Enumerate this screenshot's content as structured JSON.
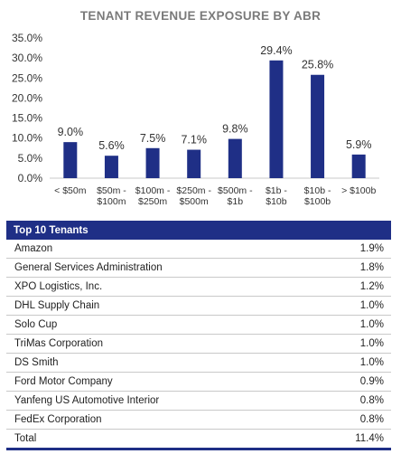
{
  "chart_data": {
    "type": "bar",
    "title": "TENANT REVENUE EXPOSURE BY ABR",
    "categories": [
      "< $50m",
      "$50m - $100m",
      "$100m - $250m",
      "$250m - $500m",
      "$500m - $1b",
      "$1b - $10b",
      "$10b - $100b",
      "> $100b"
    ],
    "category_lines": [
      [
        "< $50m"
      ],
      [
        "$50m -",
        "$100m"
      ],
      [
        "$100m -",
        "$250m"
      ],
      [
        "$250m -",
        "$500m"
      ],
      [
        "$500m -",
        "$1b"
      ],
      [
        "$1b -",
        "$10b"
      ],
      [
        "$10b -",
        "$100b"
      ],
      [
        "> $100b"
      ]
    ],
    "values": [
      9.0,
      5.6,
      7.5,
      7.1,
      9.8,
      29.4,
      25.8,
      5.9
    ],
    "data_labels": [
      "9.0%",
      "5.6%",
      "7.5%",
      "7.1%",
      "9.8%",
      "29.4%",
      "25.8%",
      "5.9%"
    ],
    "ylim": [
      0,
      35
    ],
    "yticks": [
      0,
      5,
      10,
      15,
      20,
      25,
      30,
      35
    ],
    "ytick_labels": [
      "0.0%",
      "5.0%",
      "10.0%",
      "15.0%",
      "20.0%",
      "25.0%",
      "30.0%",
      "35.0%"
    ],
    "grid": false,
    "bar_color": "#1f2f86"
  },
  "table": {
    "header": "Top 10 Tenants",
    "rows": [
      {
        "name": "Amazon",
        "value": "1.9%"
      },
      {
        "name": "General Services Administration",
        "value": "1.8%"
      },
      {
        "name": "XPO Logistics, Inc.",
        "value": "1.2%"
      },
      {
        "name": "DHL Supply Chain",
        "value": "1.0%"
      },
      {
        "name": "Solo Cup",
        "value": "1.0%"
      },
      {
        "name": "TriMas Corporation",
        "value": "1.0%"
      },
      {
        "name": "DS Smith",
        "value": "1.0%"
      },
      {
        "name": "Ford Motor Company",
        "value": "0.9%"
      },
      {
        "name": "Yanfeng US Automotive Interior",
        "value": "0.8%"
      },
      {
        "name": "FedEx Corporation",
        "value": "0.8%"
      }
    ],
    "total": {
      "name": "Total",
      "value": "11.4%"
    }
  }
}
